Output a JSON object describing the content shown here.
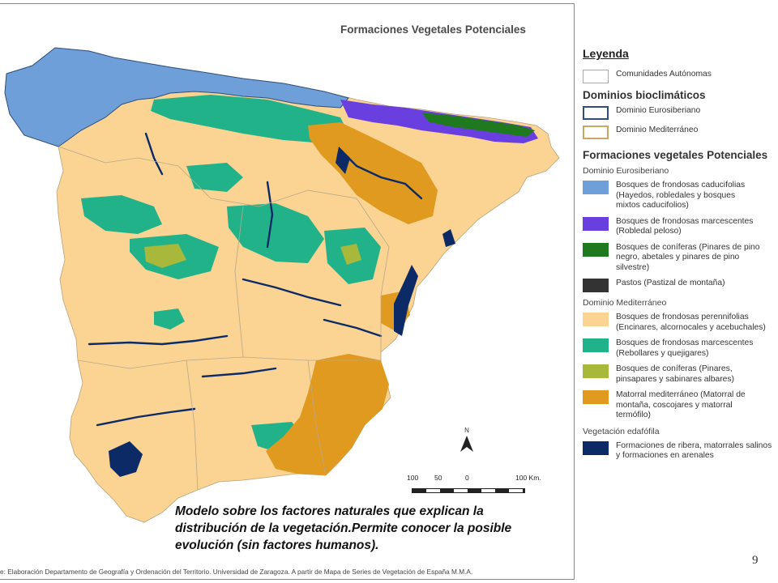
{
  "map": {
    "title": "Formaciones Vegetales Potenciales",
    "scale_labels": [
      "100",
      "50",
      "0",
      "100 Km."
    ],
    "north_label": "N",
    "caption": "Modelo sobre los factores naturales que explican la distribución de la vegetación.Permite conocer la posible evolución (sin factores humanos).",
    "source": "e: Elaboración Departamento de Geografía y Ordenación del Territorio. Universidad de Zaragoza. A partir de Mapa de Series de Vegetación de España M.M.A.",
    "colors": {
      "background_mediterranean": "#fbd393",
      "eurosiberian_caducifolios": "#6f9fd8",
      "marcescentes_euro": "#6a3fe0",
      "coniferas_euro": "#1f7a1f",
      "pastos": "#333333",
      "marcescentes_med": "#22b28a",
      "coniferas_med": "#a7b83a",
      "matorral": "#e09a1f",
      "edafofila": "#0b2a66"
    }
  },
  "legend": {
    "title": "Leyenda",
    "ccaa": "Comunidades Autónomas",
    "dominios_title": "Dominios bioclimáticos",
    "dominio_euro": "Dominio Eurosiberiano",
    "dominio_med": "Dominio Mediterráneo",
    "formaciones_title": "Formaciones vegetales Potenciales",
    "sub_euro": "Dominio Eurosiberiano",
    "sub_med": "Dominio Mediterráneo",
    "sub_edafo": "Vegetación edafófila",
    "items": [
      {
        "label": "Bosques de frondosas caducifolias\n(Hayedos, robledales y bosques\nmixtos caducifolios)",
        "color": "#6f9fd8"
      },
      {
        "label": "Bosques de frondosas marcescentes\n(Robledal peloso)",
        "color": "#6a3fe0"
      },
      {
        "label": "Bosques de coníferas (Pinares de pino\nnegro, abetales y pinares de pino\nsilvestre)",
        "color": "#1f7a1f"
      },
      {
        "label": "Pastos (Pastizal de montaña)",
        "color": "#333333"
      },
      {
        "label": "Bosques de frondosas perennifolias\n(Encinares, alcornocales y acebuchales)",
        "color": "#fbd393"
      },
      {
        "label": "Bosques de frondosas marcescentes\n(Rebollares y quejigares)",
        "color": "#22b28a"
      },
      {
        "label": "Bosques de coníferas (Pinares,\npinsapares y sabinares albares)",
        "color": "#a7b83a"
      },
      {
        "label": "Matorral mediterráneo (Matorral de\nmontaña, coscojares y matorral\ntermófilo)",
        "color": "#e09a1f"
      },
      {
        "label": "Formaciones de ribera, matorrales salinos\ny formaciones en arenales",
        "color": "#0b2a66"
      }
    ]
  },
  "page_number": "9"
}
